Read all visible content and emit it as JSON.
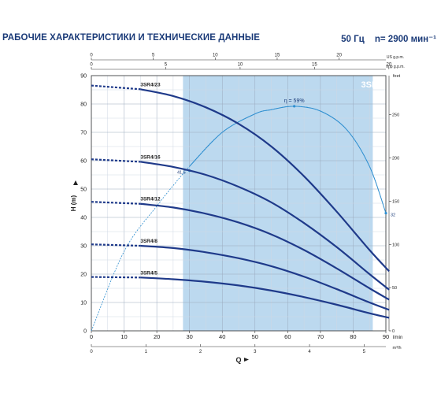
{
  "header": {
    "title": "РАБОЧИЕ ХАРАКТЕРИСТИКИ И ТЕХНИЧЕСКИЕ ДАННЫЕ",
    "frequency": "50 Гц",
    "speed": "n= 2900 мин⁻¹"
  },
  "chart_data": {
    "type": "line",
    "model": "3SR4",
    "xlabel": "Q",
    "ylabel": "H (m)",
    "xlim": [
      0,
      90
    ],
    "ylim": [
      0,
      90
    ],
    "x_unit": "l/min",
    "x_ticks": [
      "0",
      "10",
      "20",
      "30",
      "40",
      "50",
      "60",
      "70",
      "80",
      "90"
    ],
    "y_ticks": [
      "0",
      "10",
      "20",
      "30",
      "40",
      "50",
      "60",
      "70",
      "80",
      "90"
    ],
    "aux_axes": {
      "us_gpm": {
        "label": "US g.p.m.",
        "ticks": [
          "0",
          "5",
          "10",
          "15",
          "20"
        ]
      },
      "imp_gpm": {
        "label": "Imp g.p.m.",
        "ticks": [
          "0",
          "5",
          "10",
          "15",
          "20"
        ]
      },
      "m3h": {
        "label": "m³/h",
        "ticks": [
          "0",
          "1",
          "2",
          "3",
          "4",
          "5"
        ]
      },
      "feet": {
        "label": "feet",
        "ticks": [
          "0",
          "50",
          "100",
          "150",
          "200",
          "250"
        ]
      }
    },
    "recommended_range": [
      28,
      86
    ],
    "series": [
      {
        "name": "3SR4/23",
        "x": [
          0,
          15,
          25,
          35,
          45,
          55,
          65,
          75,
          85,
          91
        ],
        "y": [
          86.5,
          85.2,
          82.8,
          78.8,
          73,
          65,
          54.5,
          42,
          28.5,
          21
        ]
      },
      {
        "name": "3SR4/16",
        "x": [
          0,
          15,
          25,
          35,
          45,
          55,
          65,
          75,
          85,
          91
        ],
        "y": [
          60.5,
          59.6,
          57.8,
          55,
          50.8,
          45.3,
          38,
          29.5,
          20,
          14.5
        ]
      },
      {
        "name": "3SR4/12",
        "x": [
          0,
          15,
          25,
          35,
          45,
          55,
          65,
          75,
          85,
          91
        ],
        "y": [
          45.5,
          44.8,
          43.5,
          41.3,
          38.2,
          34,
          28.5,
          22,
          15,
          11
        ]
      },
      {
        "name": "3SR4/8",
        "x": [
          0,
          15,
          25,
          35,
          45,
          55,
          65,
          75,
          85,
          91
        ],
        "y": [
          30.5,
          30,
          29.2,
          27.7,
          25.6,
          22.8,
          19.1,
          14.7,
          10,
          7.4
        ]
      },
      {
        "name": "3SR4/5",
        "x": [
          0,
          15,
          25,
          35,
          45,
          55,
          65,
          75,
          85,
          91
        ],
        "y": [
          19,
          18.8,
          18.2,
          17.3,
          16,
          14.2,
          11.9,
          9.2,
          6.2,
          4.6
        ]
      }
    ],
    "efficiency": {
      "label": "η = 59%",
      "x": [
        0,
        10,
        20,
        30,
        40,
        50,
        55,
        62,
        70,
        78,
        85,
        90
      ],
      "y": [
        0,
        28,
        44,
        58,
        70,
        76.5,
        78,
        79.2,
        77.5,
        71,
        58,
        41.5
      ],
      "markers": [
        {
          "x": 30,
          "y": 56.5,
          "label": "41.5"
        },
        {
          "x": 62,
          "y": 79.2,
          "label": "η = 59%"
        },
        {
          "x": 90,
          "y": 41.5,
          "label": "32"
        }
      ]
    }
  }
}
